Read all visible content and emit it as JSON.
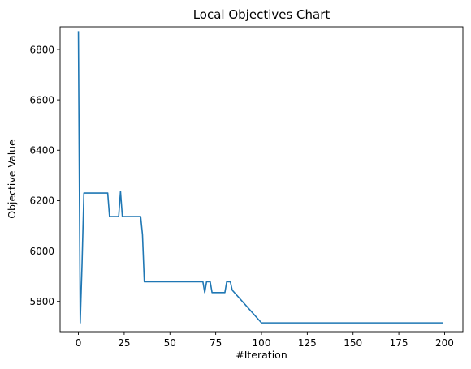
{
  "chart_data": {
    "type": "line",
    "title": "Local Objectives Chart",
    "xlabel": "#Iteration",
    "ylabel": "Objective Value",
    "xlim": [
      -10,
      210
    ],
    "ylim": [
      5680,
      6890
    ],
    "xticks": [
      0,
      25,
      50,
      75,
      100,
      125,
      150,
      175,
      200
    ],
    "yticks": [
      5800,
      6000,
      6200,
      6400,
      6600,
      6800
    ],
    "grid": false,
    "line_color": "#1f77b4",
    "series": [
      {
        "x": [
          0,
          1,
          2,
          3,
          4,
          5,
          10,
          15,
          16,
          17,
          20,
          22,
          23,
          24,
          25,
          30,
          33,
          34,
          35,
          36,
          40,
          50,
          60,
          66,
          67,
          68,
          69,
          70,
          71,
          72,
          73,
          75,
          78,
          80,
          81,
          82,
          83,
          84,
          100,
          150,
          199
        ],
        "y": [
          6870,
          5715,
          5950,
          6230,
          6230,
          6230,
          6230,
          6230,
          6230,
          6137,
          6137,
          6137,
          6237,
          6137,
          6137,
          6137,
          6137,
          6137,
          6065,
          5878,
          5878,
          5878,
          5878,
          5878,
          5878,
          5878,
          5835,
          5878,
          5878,
          5878,
          5835,
          5835,
          5835,
          5835,
          5878,
          5878,
          5878,
          5845,
          5715,
          5715,
          5715
        ]
      }
    ]
  }
}
